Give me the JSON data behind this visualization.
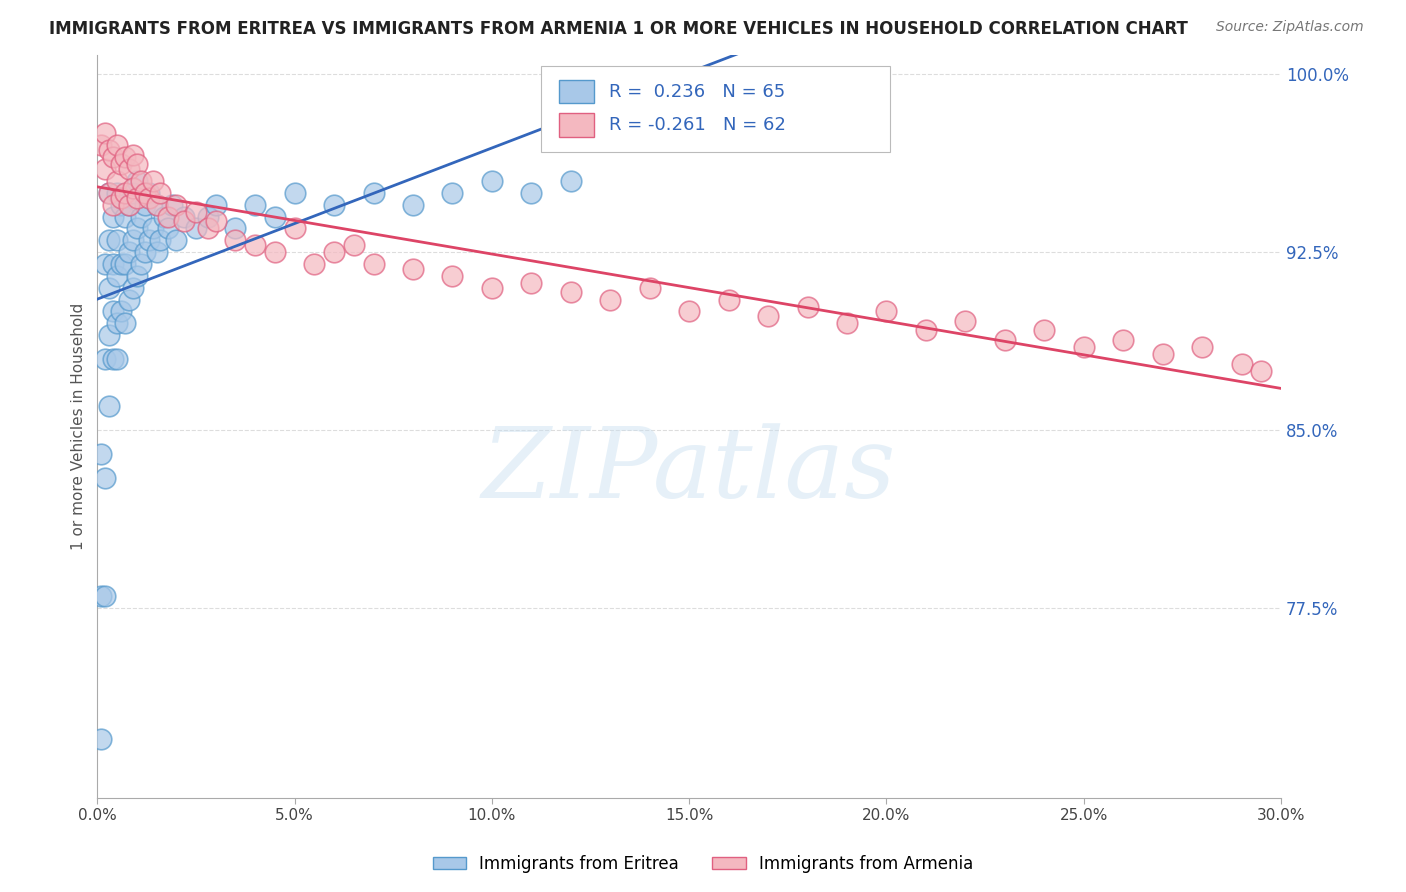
{
  "title": "IMMIGRANTS FROM ERITREA VS IMMIGRANTS FROM ARMENIA 1 OR MORE VEHICLES IN HOUSEHOLD CORRELATION CHART",
  "source": "Source: ZipAtlas.com",
  "ylabel": "1 or more Vehicles in Household",
  "xmin": 0.0,
  "xmax": 0.3,
  "ymin": 0.695,
  "ymax": 1.008,
  "yticks": [
    0.775,
    0.85,
    0.925,
    1.0
  ],
  "ytick_labels": [
    "77.5%",
    "85.0%",
    "92.5%",
    "100.0%"
  ],
  "xticks": [
    0.0,
    0.05,
    0.1,
    0.15,
    0.2,
    0.25,
    0.3
  ],
  "xtick_labels": [
    "0.0%",
    "5.0%",
    "10.0%",
    "15.0%",
    "20.0%",
    "25.0%",
    "30.0%"
  ],
  "eritrea_R": 0.236,
  "eritrea_N": 65,
  "armenia_R": -0.261,
  "armenia_N": 62,
  "eritrea_color": "#a8c8e8",
  "armenia_color": "#f4b8c0",
  "eritrea_edge_color": "#5599cc",
  "armenia_edge_color": "#e06080",
  "eritrea_line_color": "#3366bb",
  "armenia_line_color": "#dd4466",
  "background_color": "#ffffff",
  "grid_color": "#dddddd",
  "watermark_text": "ZIPatlas",
  "eritrea_x": [
    0.001,
    0.001,
    0.001,
    0.002,
    0.002,
    0.002,
    0.002,
    0.003,
    0.003,
    0.003,
    0.003,
    0.003,
    0.004,
    0.004,
    0.004,
    0.004,
    0.005,
    0.005,
    0.005,
    0.005,
    0.005,
    0.006,
    0.006,
    0.006,
    0.007,
    0.007,
    0.007,
    0.008,
    0.008,
    0.008,
    0.009,
    0.009,
    0.009,
    0.01,
    0.01,
    0.01,
    0.011,
    0.011,
    0.012,
    0.012,
    0.013,
    0.013,
    0.014,
    0.015,
    0.015,
    0.016,
    0.017,
    0.018,
    0.019,
    0.02,
    0.022,
    0.025,
    0.028,
    0.03,
    0.035,
    0.04,
    0.045,
    0.05,
    0.06,
    0.07,
    0.08,
    0.09,
    0.1,
    0.11,
    0.12
  ],
  "eritrea_y": [
    0.72,
    0.78,
    0.84,
    0.78,
    0.83,
    0.88,
    0.92,
    0.86,
    0.89,
    0.91,
    0.93,
    0.95,
    0.88,
    0.9,
    0.92,
    0.94,
    0.88,
    0.895,
    0.915,
    0.93,
    0.95,
    0.9,
    0.92,
    0.945,
    0.895,
    0.92,
    0.94,
    0.905,
    0.925,
    0.945,
    0.91,
    0.93,
    0.95,
    0.915,
    0.935,
    0.955,
    0.92,
    0.94,
    0.925,
    0.945,
    0.93,
    0.95,
    0.935,
    0.925,
    0.945,
    0.93,
    0.94,
    0.935,
    0.945,
    0.93,
    0.94,
    0.935,
    0.94,
    0.945,
    0.935,
    0.945,
    0.94,
    0.95,
    0.945,
    0.95,
    0.945,
    0.95,
    0.955,
    0.95,
    0.955
  ],
  "armenia_x": [
    0.001,
    0.002,
    0.002,
    0.003,
    0.003,
    0.004,
    0.004,
    0.005,
    0.005,
    0.006,
    0.006,
    0.007,
    0.007,
    0.008,
    0.008,
    0.009,
    0.009,
    0.01,
    0.01,
    0.011,
    0.012,
    0.013,
    0.014,
    0.015,
    0.016,
    0.018,
    0.02,
    0.022,
    0.025,
    0.028,
    0.03,
    0.035,
    0.04,
    0.045,
    0.05,
    0.055,
    0.06,
    0.065,
    0.07,
    0.08,
    0.09,
    0.1,
    0.11,
    0.12,
    0.13,
    0.14,
    0.15,
    0.16,
    0.17,
    0.18,
    0.19,
    0.2,
    0.21,
    0.22,
    0.23,
    0.24,
    0.25,
    0.26,
    0.27,
    0.28,
    0.29,
    0.295
  ],
  "armenia_y": [
    0.97,
    0.96,
    0.975,
    0.95,
    0.968,
    0.945,
    0.965,
    0.955,
    0.97,
    0.948,
    0.962,
    0.95,
    0.965,
    0.945,
    0.96,
    0.952,
    0.966,
    0.948,
    0.962,
    0.955,
    0.95,
    0.948,
    0.955,
    0.945,
    0.95,
    0.94,
    0.945,
    0.938,
    0.942,
    0.935,
    0.938,
    0.93,
    0.928,
    0.925,
    0.935,
    0.92,
    0.925,
    0.928,
    0.92,
    0.918,
    0.915,
    0.91,
    0.912,
    0.908,
    0.905,
    0.91,
    0.9,
    0.905,
    0.898,
    0.902,
    0.895,
    0.9,
    0.892,
    0.896,
    0.888,
    0.892,
    0.885,
    0.888,
    0.882,
    0.885,
    0.878,
    0.875
  ]
}
